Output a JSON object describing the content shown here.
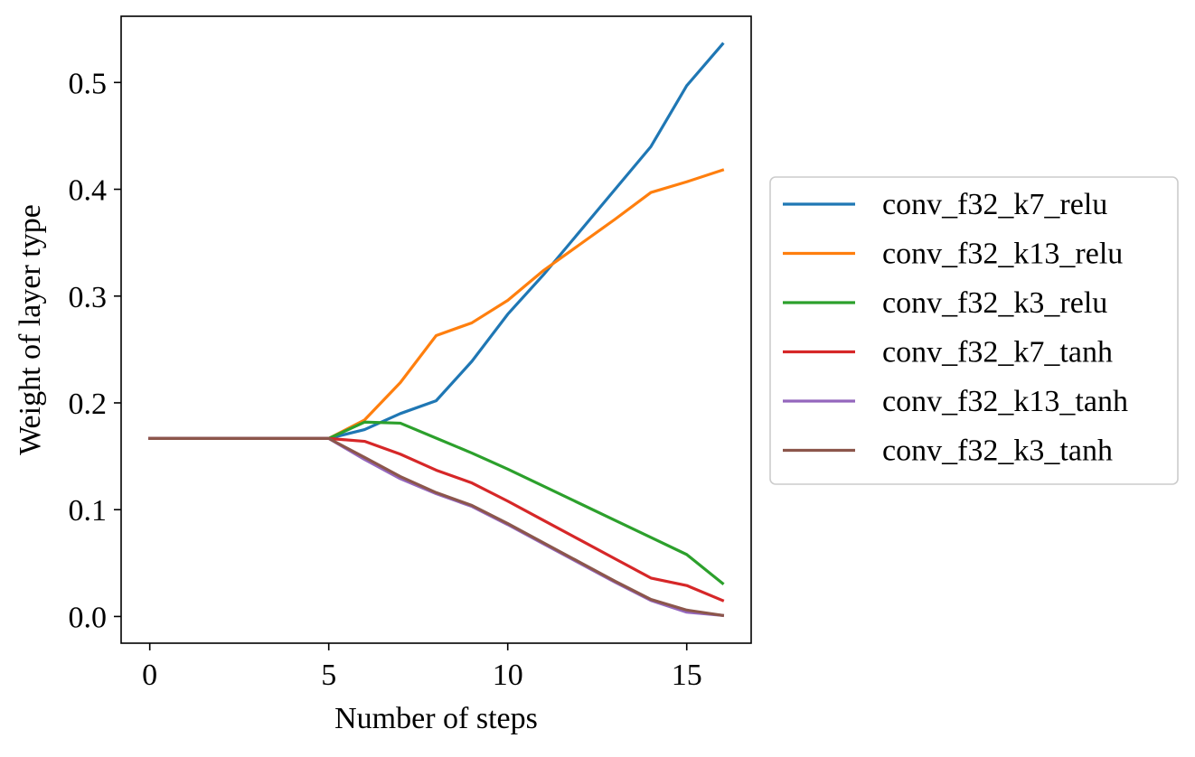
{
  "chart_data": {
    "type": "line",
    "title": "",
    "xlabel": "Number of steps",
    "ylabel": "Weight of layer type",
    "xlim": [
      -0.8,
      16.8
    ],
    "ylim": [
      -0.025,
      0.562
    ],
    "xticks": [
      0,
      5,
      10,
      15
    ],
    "xtick_labels": [
      "0",
      "5",
      "10",
      "15"
    ],
    "yticks": [
      0.0,
      0.1,
      0.2,
      0.3,
      0.4,
      0.5
    ],
    "ytick_labels": [
      "0.0",
      "0.1",
      "0.2",
      "0.3",
      "0.4",
      "0.5"
    ],
    "grid": false,
    "legend_position": "outside-right",
    "x": [
      0,
      1,
      2,
      3,
      4,
      5,
      6,
      7,
      8,
      9,
      10,
      11,
      12,
      13,
      14,
      15,
      16
    ],
    "series": [
      {
        "name": "conv_f32_k7_relu",
        "color": "#1f77b4",
        "values": [
          0.1667,
          0.1667,
          0.1667,
          0.1667,
          0.1667,
          0.1667,
          0.175,
          0.19,
          0.202,
          0.239,
          0.283,
          0.32,
          0.36,
          0.4,
          0.44,
          0.497,
          0.536
        ]
      },
      {
        "name": "conv_f32_k13_relu",
        "color": "#ff7f0e",
        "values": [
          0.1667,
          0.1667,
          0.1667,
          0.1667,
          0.1667,
          0.1667,
          0.184,
          0.219,
          0.263,
          0.275,
          0.296,
          0.324,
          0.348,
          0.372,
          0.397,
          0.407,
          0.418
        ]
      },
      {
        "name": "conv_f32_k3_relu",
        "color": "#2ca02c",
        "values": [
          0.1667,
          0.1667,
          0.1667,
          0.1667,
          0.1667,
          0.1667,
          0.182,
          0.181,
          0.167,
          0.153,
          0.138,
          0.122,
          0.106,
          0.09,
          0.074,
          0.058,
          0.031
        ]
      },
      {
        "name": "conv_f32_k7_tanh",
        "color": "#d62728",
        "values": [
          0.1667,
          0.1667,
          0.1667,
          0.1667,
          0.1667,
          0.1667,
          0.164,
          0.152,
          0.137,
          0.125,
          0.108,
          0.09,
          0.072,
          0.054,
          0.036,
          0.029,
          0.015
        ]
      },
      {
        "name": "conv_f32_k13_tanh",
        "color": "#9467bd",
        "values": [
          0.1667,
          0.1667,
          0.1667,
          0.1667,
          0.1667,
          0.1667,
          0.147,
          0.129,
          0.115,
          0.103,
          0.086,
          0.068,
          0.05,
          0.032,
          0.015,
          0.004,
          0.001
        ]
      },
      {
        "name": "conv_f32_k3_tanh",
        "color": "#8c564b",
        "values": [
          0.1667,
          0.1667,
          0.1667,
          0.1667,
          0.1667,
          0.1667,
          0.149,
          0.131,
          0.116,
          0.104,
          0.087,
          0.069,
          0.051,
          0.033,
          0.016,
          0.006,
          0.001
        ]
      }
    ]
  }
}
